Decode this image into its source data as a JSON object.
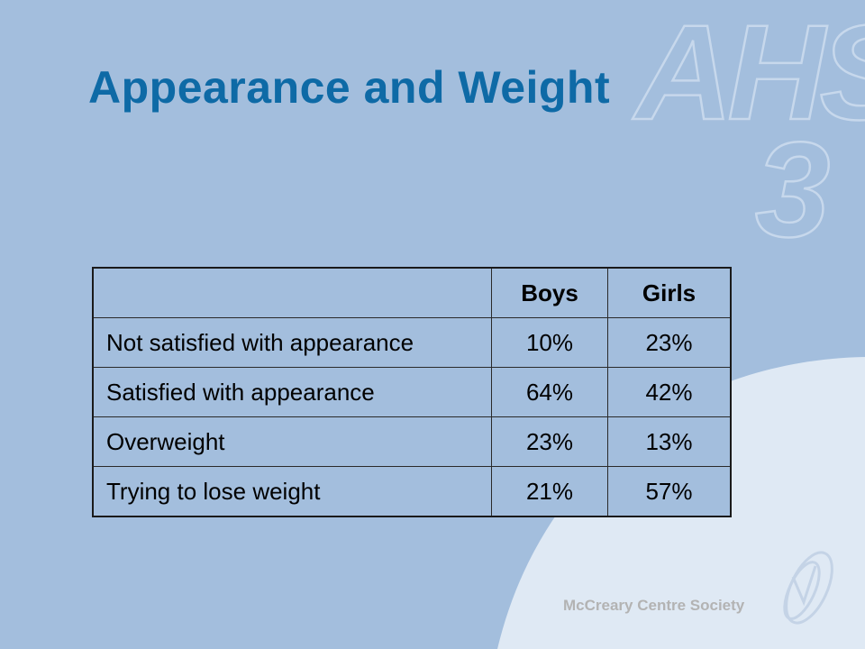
{
  "slide": {
    "title": "Appearance and Weight",
    "logo_text": "AHS",
    "logo_number": "3",
    "footer": "McCreary Centre Society"
  },
  "table": {
    "headers": [
      "",
      "Boys",
      "Girls"
    ],
    "rows": [
      [
        "Not satisfied with appearance",
        "10%",
        "23%"
      ],
      [
        "Satisfied with appearance",
        "64%",
        "42%"
      ],
      [
        "Overweight",
        "23%",
        "13%"
      ],
      [
        "Trying to lose weight",
        "21%",
        "57%"
      ]
    ]
  },
  "colors": {
    "background": "#a3bedd",
    "title": "#0e6aa6",
    "curve": "#dfe9f4",
    "footer": "#b3b3b3"
  }
}
